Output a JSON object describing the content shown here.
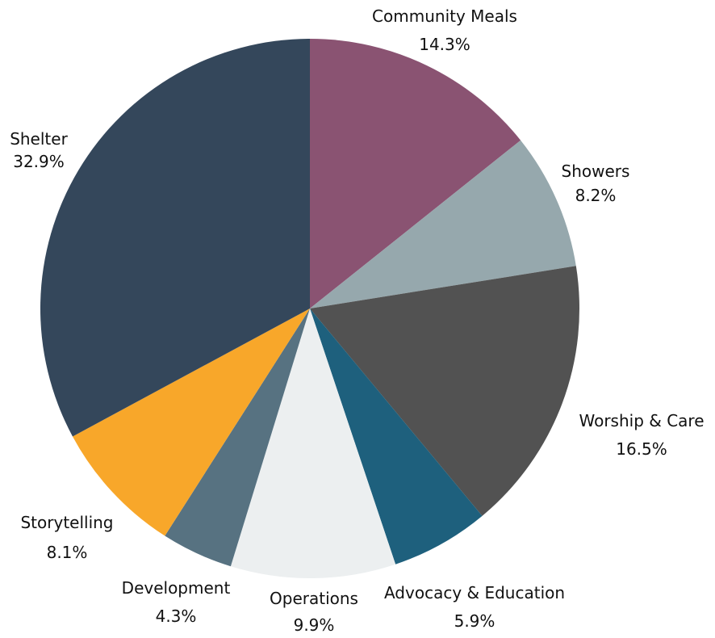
{
  "chart_data": {
    "type": "pie",
    "title": "",
    "start_angle_deg": 0,
    "direction": "clockwise",
    "slices": [
      {
        "label": "Community Meals",
        "value": 14.3,
        "value_label": "14.3%",
        "color": "#8a5372"
      },
      {
        "label": "Showers",
        "value": 8.2,
        "value_label": "8.2%",
        "color": "#96a8ad"
      },
      {
        "label": "Worship & Care",
        "value": 16.5,
        "value_label": "16.5%",
        "color": "#525252"
      },
      {
        "label": "Advocacy & Education",
        "value": 5.9,
        "value_label": "5.9%",
        "color": "#1e607d"
      },
      {
        "label": "Operations",
        "value": 9.9,
        "value_label": "9.9%",
        "color": "#eceff0"
      },
      {
        "label": "Development",
        "value": 4.3,
        "value_label": "4.3%",
        "color": "#577281"
      },
      {
        "label": "Storytelling",
        "value": 8.1,
        "value_label": "8.1%",
        "color": "#f8a72a"
      },
      {
        "label": "Shelter",
        "value": 32.9,
        "value_label": "32.9%",
        "color": "#34475b"
      }
    ],
    "legend": "none"
  }
}
